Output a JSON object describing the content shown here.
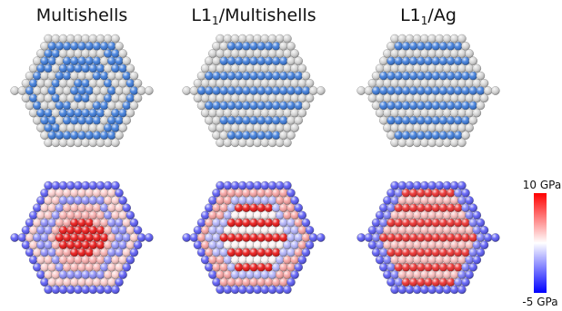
{
  "panels": [
    {
      "title_main": "Multishells",
      "title_sub": "",
      "title_tail": ""
    },
    {
      "title_main": "L1",
      "title_sub": "1",
      "title_tail": "/Multishells"
    },
    {
      "title_main": "L1",
      "title_sub": "1",
      "title_tail": "/Ag"
    }
  ],
  "colorbar": {
    "max_label": "10 GPa",
    "min_label": "-5 GPa",
    "max_value": 10,
    "min_value": -5,
    "colors": [
      "#0000ff",
      "#ffffff",
      "#ff0000"
    ]
  },
  "atom_colors": {
    "silver": "#d2d2d2",
    "blue": "#2a6fd8"
  }
}
